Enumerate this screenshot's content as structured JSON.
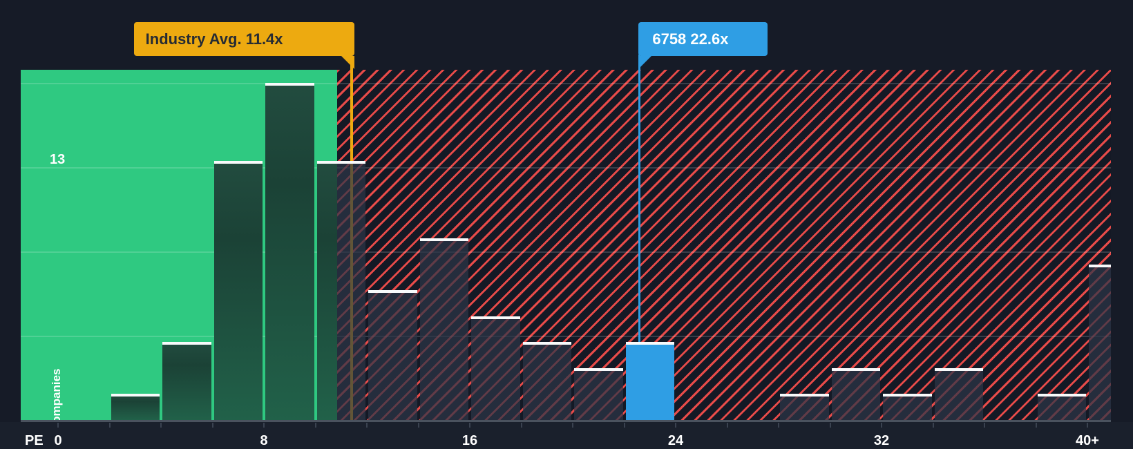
{
  "chart_data": {
    "type": "bar",
    "subtype": "histogram",
    "xlabel": "PE",
    "ylabel": "No. of Companies",
    "y_max_label": "13",
    "ylim": [
      0,
      13.5
    ],
    "grid": "horizontal quarter gridlines",
    "legend": "none",
    "x_tick_labels": [
      {
        "text": "0",
        "pe": 0
      },
      {
        "text": "8",
        "pe": 8
      },
      {
        "text": "16",
        "pe": 16
      },
      {
        "text": "24",
        "pe": 24
      },
      {
        "text": "32",
        "pe": 32
      },
      {
        "text": "40+",
        "pe": 40
      }
    ],
    "categories": [
      "0-2",
      "2-4",
      "4-6",
      "6-8",
      "8-10",
      "10-12",
      "12-14",
      "14-16",
      "16-18",
      "18-20",
      "20-22",
      "22-24",
      "24-26",
      "26-28",
      "28-30",
      "30-32",
      "32-34",
      "34-36",
      "36-38",
      "38-40",
      "40+"
    ],
    "values": [
      0,
      1,
      3,
      10,
      13,
      10,
      5,
      7,
      4,
      3,
      2,
      3,
      0,
      0,
      1,
      2,
      1,
      2,
      0,
      1,
      6
    ],
    "bins": [
      {
        "range": "0-2",
        "from": 0,
        "to": 2,
        "count": 0
      },
      {
        "range": "2-4",
        "from": 2,
        "to": 4,
        "count": 1
      },
      {
        "range": "4-6",
        "from": 4,
        "to": 6,
        "count": 3
      },
      {
        "range": "6-8",
        "from": 6,
        "to": 8,
        "count": 10
      },
      {
        "range": "8-10",
        "from": 8,
        "to": 10,
        "count": 13
      },
      {
        "range": "10-12",
        "from": 10,
        "to": 12,
        "count": 10
      },
      {
        "range": "12-14",
        "from": 12,
        "to": 14,
        "count": 5
      },
      {
        "range": "14-16",
        "from": 14,
        "to": 16,
        "count": 7
      },
      {
        "range": "16-18",
        "from": 16,
        "to": 18,
        "count": 4
      },
      {
        "range": "18-20",
        "from": 18,
        "to": 20,
        "count": 3
      },
      {
        "range": "20-22",
        "from": 20,
        "to": 22,
        "count": 2
      },
      {
        "range": "22-24",
        "from": 22,
        "to": 24,
        "count": 3,
        "highlight": true
      },
      {
        "range": "24-26",
        "from": 24,
        "to": 26,
        "count": 0
      },
      {
        "range": "26-28",
        "from": 26,
        "to": 28,
        "count": 0
      },
      {
        "range": "28-30",
        "from": 28,
        "to": 30,
        "count": 1
      },
      {
        "range": "30-32",
        "from": 30,
        "to": 32,
        "count": 2
      },
      {
        "range": "32-34",
        "from": 32,
        "to": 34,
        "count": 1
      },
      {
        "range": "34-36",
        "from": 34,
        "to": 36,
        "count": 2
      },
      {
        "range": "36-38",
        "from": 36,
        "to": 38,
        "count": 0
      },
      {
        "range": "38-40",
        "from": 38,
        "to": 40,
        "count": 1
      },
      {
        "range": "40+",
        "from": 40,
        "to": null,
        "count": 6
      }
    ],
    "markers": {
      "industry_avg": {
        "label": "Industry Avg. 11.4x",
        "value": 11.4,
        "color": "#edaa10"
      },
      "company": {
        "label": "6758 22.6x",
        "ticker": "6758",
        "value": 22.6,
        "color": "#2f9ee4"
      }
    },
    "zones": {
      "below_average_color": "#2fc981",
      "above_average_hatch_color": "#e84b49",
      "bar_cap_color": "#f8fafb"
    }
  }
}
